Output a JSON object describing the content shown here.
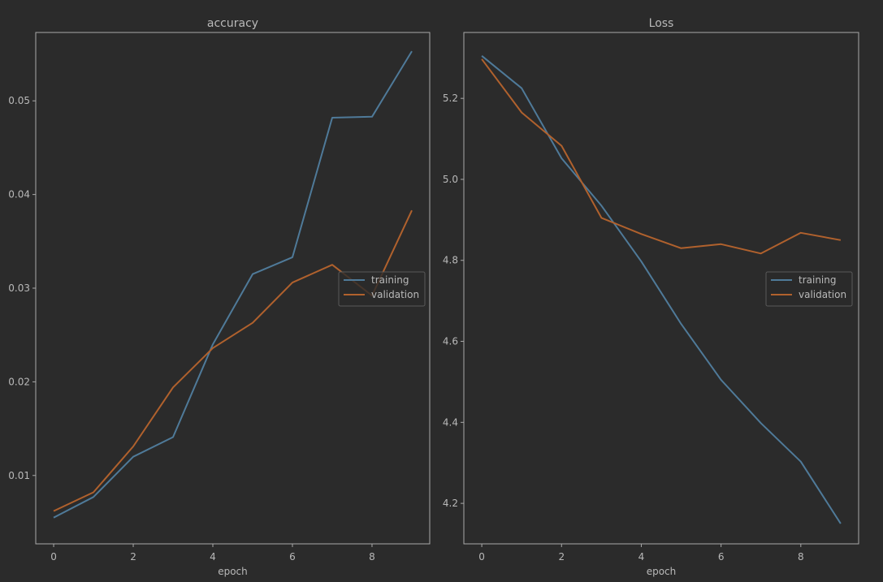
{
  "colors": {
    "background": "#2b2b2b",
    "axes": "#a9a9a9",
    "text": "#b9b9b9",
    "training": "#4f7a99",
    "validation": "#b0612d",
    "legend_bg": "#2b2b2b",
    "legend_border": "#5a5a5a"
  },
  "chart_data": [
    {
      "type": "line",
      "title": "accuracy",
      "xlabel": "epoch",
      "ylabel": "",
      "xlim": [
        -0.45,
        9.45
      ],
      "ylim": [
        0.0027,
        0.0573
      ],
      "x_ticks": [
        0,
        2,
        4,
        6,
        8
      ],
      "y_ticks": [
        0.01,
        0.02,
        0.03,
        0.04,
        0.05
      ],
      "y_tick_labels": [
        "0.01",
        "0.02",
        "0.03",
        "0.04",
        "0.05"
      ],
      "grid": false,
      "legend_position": "right",
      "series": [
        {
          "name": "training",
          "x": [
            0,
            1,
            2,
            3,
            4,
            5,
            6,
            7,
            8,
            9
          ],
          "values": [
            0.0055,
            0.0077,
            0.012,
            0.0141,
            0.024,
            0.0315,
            0.0333,
            0.0482,
            0.0483,
            0.0553
          ]
        },
        {
          "name": "validation",
          "x": [
            0,
            1,
            2,
            3,
            4,
            5,
            6,
            7,
            8,
            9
          ],
          "values": [
            0.0062,
            0.0082,
            0.0131,
            0.0194,
            0.0236,
            0.0263,
            0.0306,
            0.0325,
            0.0292,
            0.0383
          ]
        }
      ]
    },
    {
      "type": "line",
      "title": "Loss",
      "xlabel": "epoch",
      "ylabel": "",
      "xlim": [
        -0.45,
        9.45
      ],
      "ylim": [
        4.1,
        5.3627
      ],
      "x_ticks": [
        0,
        2,
        4,
        6,
        8
      ],
      "y_ticks": [
        4.2,
        4.4,
        4.6,
        4.8,
        5.0,
        5.2
      ],
      "y_tick_labels": [
        "4.2",
        "4.4",
        "4.6",
        "4.8",
        "5.0",
        "5.2"
      ],
      "grid": false,
      "legend_position": "right",
      "series": [
        {
          "name": "training",
          "x": [
            0,
            1,
            2,
            3,
            4,
            5,
            6,
            7,
            8,
            9
          ],
          "values": [
            5.305,
            5.225,
            5.052,
            4.935,
            4.797,
            4.643,
            4.505,
            4.398,
            4.303,
            4.15
          ]
        },
        {
          "name": "validation",
          "x": [
            0,
            1,
            2,
            3,
            4,
            5,
            6,
            7,
            8,
            9
          ],
          "values": [
            5.297,
            5.165,
            5.083,
            4.905,
            4.865,
            4.83,
            4.84,
            4.817,
            4.868,
            4.85
          ]
        }
      ]
    }
  ]
}
